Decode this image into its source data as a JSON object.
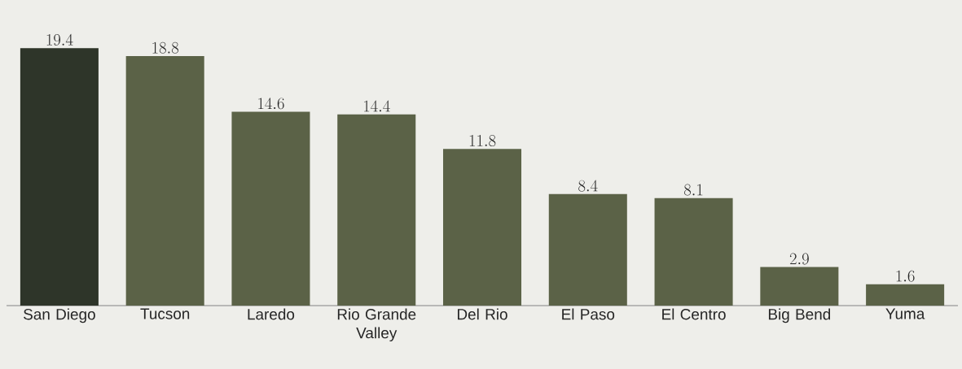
{
  "chart_data": {
    "type": "bar",
    "categories": [
      "San Diego",
      "Tucson",
      "Laredo",
      "Rio Grande Valley",
      "Del Rio",
      "El Paso",
      "El Centro",
      "Big Bend",
      "Yuma"
    ],
    "values": [
      19.4,
      18.8,
      14.6,
      14.4,
      11.8,
      8.4,
      8.1,
      2.9,
      1.6
    ],
    "colors": [
      "#2e3529",
      "#5b6247",
      "#5b6247",
      "#5b6247",
      "#5b6247",
      "#5b6247",
      "#5b6247",
      "#5b6247",
      "#5b6247"
    ],
    "data_labels": true
  }
}
